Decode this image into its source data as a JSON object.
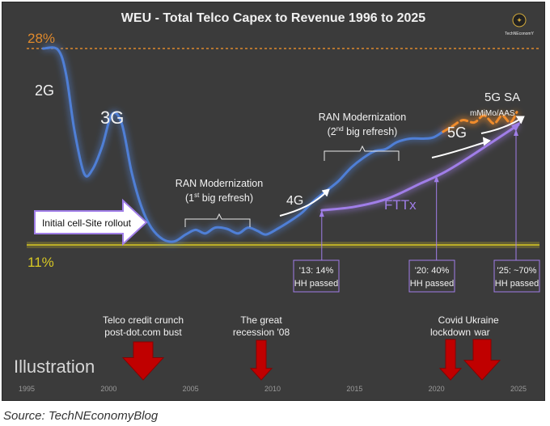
{
  "chart_data": {
    "type": "line",
    "title": "WEU - Total Telco Capex to Revenue 1996 to 2025",
    "logo_text": "TechNEconomY",
    "x_ticks": [
      "1995",
      "2000",
      "2005",
      "2010",
      "2015",
      "2020",
      "2025"
    ],
    "xlim": [
      1995,
      2025
    ],
    "ylim": [
      11,
      28
    ],
    "ref_lines": [
      {
        "label": "28%",
        "value": 28,
        "color": "#e08a2c"
      },
      {
        "label": "11%",
        "value": 11,
        "color": "#d8c824"
      }
    ],
    "series": [
      {
        "name": "",
        "color": "#4f7fd6",
        "x": [
          1996,
          1996.9,
          1997.4,
          1997.9,
          1998.5,
          1999.0,
          1999.6,
          2000.2,
          2000.8,
          2001.4,
          2002.0,
          2002.6,
          2003.3,
          2004.0,
          2004.7,
          2005.3,
          2005.9,
          2006.5,
          2007.2,
          2007.9,
          2008.5,
          2009.1,
          2009.6,
          2010.3,
          2011.0,
          2011.8,
          2012.5,
          2013.3,
          2014.0,
          2014.8,
          2015.5,
          2016.2,
          2016.9,
          2017.6,
          2018.4,
          2019.2,
          2019.8,
          2020.4
        ],
        "y": [
          28.0,
          27.9,
          25.8,
          21.0,
          17.2,
          17.5,
          19.5,
          22.3,
          21.5,
          17.3,
          14.3,
          12.5,
          11.5,
          11.3,
          11.9,
          12.3,
          12.0,
          12.5,
          12.4,
          12.0,
          12.5,
          12.2,
          11.9,
          12.4,
          13.0,
          13.8,
          14.8,
          15.7,
          16.5,
          17.7,
          18.5,
          19.1,
          19.3,
          19.9,
          20.2,
          20.2,
          20.3,
          20.8
        ]
      },
      {
        "name": "",
        "color": "#f08c2c",
        "dashed": true,
        "x": [
          2020.4,
          2021.0,
          2021.6,
          2022.3,
          2022.9,
          2023.5,
          2024.0,
          2024.5,
          2024.9
        ],
        "y": [
          20.8,
          21.3,
          21.8,
          21.6,
          22.2,
          21.5,
          22.2,
          21.6,
          22.5
        ]
      },
      {
        "name": "FTTx",
        "color": "#a07ee8",
        "x": [
          2013,
          2015,
          2017,
          2019,
          2020.5,
          2022,
          2023.5,
          2025
        ],
        "y": [
          14.0,
          14.3,
          15.0,
          16.3,
          17.3,
          18.6,
          20.0,
          21.4
        ]
      }
    ],
    "annotations": [
      {
        "text": "2G"
      },
      {
        "text": "3G"
      },
      {
        "text": "RAN Modernization",
        "line2": "(1",
        "sup": "st",
        "line2b": " big refresh)"
      },
      {
        "text": "RAN Modernization",
        "line2": "(2",
        "sup": "nd",
        "line2b": " big refresh)"
      },
      {
        "text": "4G"
      },
      {
        "text": "5G"
      },
      {
        "text": "5G SA",
        "line2": "mMiMo/AAS"
      },
      {
        "text": "FTTx"
      },
      {
        "text": "Initial cell-Site rollout"
      }
    ],
    "ftth_callouts": [
      {
        "line1": "'13: 14%",
        "line2": "HH passed",
        "year": 2013
      },
      {
        "line1": "'20: 40%",
        "line2": "HH passed",
        "year": 2020
      },
      {
        "line1": "'25: ~70%",
        "line2": "HH passed",
        "year": 2025
      }
    ],
    "events": [
      {
        "line1": "Telco credit crunch",
        "line2": "post-dot.com bust",
        "year": 2002
      },
      {
        "line1": "The great",
        "line2": "recession '08",
        "year": 2009
      },
      {
        "line1": "Covid",
        "line2": "lockdown",
        "year": 2020
      },
      {
        "line1": "Ukraine",
        "line2": "war",
        "year": 2022
      }
    ],
    "watermark": "Illustration"
  },
  "source": "Source: TechNEconomyBlog"
}
